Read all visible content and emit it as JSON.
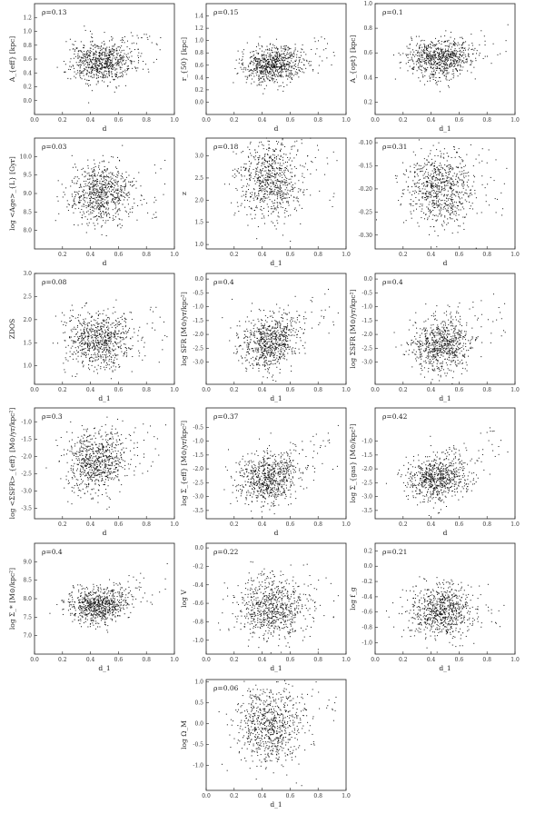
{
  "chart_data": [
    {
      "id": "p1",
      "type": "scatter",
      "rho": "ρ=0.13",
      "xlabel": "d",
      "ylabel": "A_{eff} [kpc]",
      "xlim": [
        0,
        1
      ],
      "ylim": [
        -0.2,
        1.4
      ],
      "xticks": [
        "0.0",
        "0.2",
        "0.4",
        "0.6",
        "0.8",
        "1.0"
      ],
      "yticks": [
        "0.0",
        "0.2",
        "0.4",
        "0.6",
        "0.8",
        "1.0",
        "1.2"
      ],
      "n": 750,
      "cx": 0.48,
      "sx": 0.11,
      "cy": 0.55,
      "sy": 0.14,
      "tail": 0.25,
      "seed": 11
    },
    {
      "id": "p2",
      "type": "scatter",
      "rho": "ρ=0.15",
      "xlabel": "d",
      "ylabel": "r_{50} [kpc]",
      "xlim": [
        0,
        1
      ],
      "ylim": [
        -0.2,
        1.6
      ],
      "xticks": [
        "0.0",
        "0.2",
        "0.4",
        "0.6",
        "0.8",
        "1.0"
      ],
      "yticks": [
        "0.0",
        "0.2",
        "0.4",
        "0.6",
        "0.8",
        "1.0",
        "1.2",
        "1.4"
      ],
      "n": 750,
      "cx": 0.48,
      "sx": 0.11,
      "cy": 0.6,
      "sy": 0.15,
      "tail": 0.3,
      "seed": 12
    },
    {
      "id": "p3",
      "type": "scatter",
      "rho": "ρ=0.1",
      "xlabel": "d_1",
      "ylabel": "A_{opt} [kpc]",
      "xlim": [
        0,
        1
      ],
      "ylim": [
        0.1,
        1.0
      ],
      "xticks": [
        "0.0",
        "0.2",
        "0.4",
        "0.6",
        "0.8",
        "1.0"
      ],
      "yticks": [
        "0.2",
        "0.4",
        "0.6",
        "0.8",
        "1.0"
      ],
      "n": 750,
      "cx": 0.47,
      "sx": 0.12,
      "cy": 0.55,
      "sy": 0.08,
      "tail": 0.2,
      "seed": 13
    },
    {
      "id": "p4",
      "type": "scatter",
      "rho": "ρ=0.03",
      "xlabel": "d",
      "ylabel": "log <Age>_{L} [Gyr]",
      "xlim": [
        0,
        1
      ],
      "ylim": [
        7.5,
        10.5
      ],
      "xticks": [
        "0.2",
        "0.4",
        "0.6",
        "0.8",
        "1.0"
      ],
      "yticks": [
        "8.0",
        "8.5",
        "9.0",
        "9.5",
        "10.0"
      ],
      "n": 750,
      "cx": 0.48,
      "sx": 0.11,
      "cy": 8.95,
      "sy": 0.4,
      "tail": 0.0,
      "seed": 14
    },
    {
      "id": "p5",
      "type": "scatter",
      "rho": "ρ=0.18",
      "xlabel": "d_1",
      "ylabel": "z",
      "xlim": [
        0,
        1
      ],
      "ylim": [
        0.9,
        3.4
      ],
      "xticks": [
        "0.2",
        "0.4",
        "0.6",
        "0.8",
        "1.0"
      ],
      "yticks": [
        "1.0",
        "1.5",
        "2.0",
        "2.5",
        "3.0"
      ],
      "n": 750,
      "cx": 0.45,
      "sx": 0.12,
      "cy": 2.45,
      "sy": 0.45,
      "tail": 0.0,
      "seed": 15
    },
    {
      "id": "p6",
      "type": "scatter",
      "rho": "ρ=0.31",
      "xlabel": "d",
      "ylabel": "",
      "xlim": [
        0,
        1
      ],
      "ylim": [
        -0.33,
        -0.09
      ],
      "xticks": [
        "0.2",
        "0.4",
        "0.6",
        "0.8",
        "1.0"
      ],
      "yticks": [
        "-0.10",
        "-0.15",
        "-0.20",
        "-0.25",
        "-0.30"
      ],
      "n": 750,
      "cx": 0.47,
      "sx": 0.12,
      "cy": -0.2,
      "sy": 0.04,
      "tail": 0.0,
      "seed": 16
    },
    {
      "id": "p7",
      "type": "scatter",
      "rho": "ρ=0.08",
      "xlabel": "d_1",
      "ylabel": "ZDOS",
      "xlim": [
        0,
        1
      ],
      "ylim": [
        0.6,
        3.0
      ],
      "xticks": [
        "0.0",
        "0.2",
        "0.4",
        "0.6",
        "0.8",
        "1.0"
      ],
      "yticks": [
        "1.0",
        "1.5",
        "2.0",
        "2.5",
        "3.0"
      ],
      "n": 750,
      "cx": 0.45,
      "sx": 0.12,
      "cy": 1.55,
      "sy": 0.3,
      "tail": 0.0,
      "seed": 17
    },
    {
      "id": "p8",
      "type": "scatter",
      "rho": "ρ=0.4",
      "xlabel": "d_1",
      "ylabel": "log SFR [M⊙/yr/kpc²]",
      "xlim": [
        0,
        1
      ],
      "ylim": [
        -3.8,
        0.2
      ],
      "xticks": [
        "0.0",
        "0.2",
        "0.4",
        "0.6",
        "0.8",
        "1.0"
      ],
      "yticks": [
        "-3.0",
        "-2.5",
        "-2.0",
        "-1.5",
        "-1.0",
        "-0.5",
        "0.0"
      ],
      "n": 750,
      "cx": 0.45,
      "sx": 0.11,
      "cy": -2.3,
      "sy": 0.5,
      "tail": 1.8,
      "seed": 18
    },
    {
      "id": "p9",
      "type": "scatter",
      "rho": "ρ=0.4",
      "xlabel": "d_1",
      "ylabel": "log ΣSFR [M⊙/yr/kpc²]",
      "xlim": [
        0,
        1
      ],
      "ylim": [
        -3.8,
        0.2
      ],
      "xticks": [
        "0.0",
        "0.2",
        "0.4",
        "0.6",
        "0.8",
        "1.0"
      ],
      "yticks": [
        "-3.0",
        "-2.5",
        "-2.0",
        "-1.5",
        "-1.0",
        "-0.5",
        "0.0"
      ],
      "n": 750,
      "cx": 0.47,
      "sx": 0.11,
      "cy": -2.4,
      "sy": 0.5,
      "tail": 1.8,
      "seed": 19
    },
    {
      "id": "p10",
      "type": "scatter",
      "rho": "ρ=0.3",
      "xlabel": "d",
      "ylabel": "log <ΣSFR>_{eff} [M⊙/yr/kpc²]",
      "xlim": [
        0,
        1
      ],
      "ylim": [
        -3.8,
        -0.6
      ],
      "xticks": [
        "0.2",
        "0.4",
        "0.6",
        "0.8",
        "1.0"
      ],
      "yticks": [
        "-3.5",
        "-3.0",
        "-2.5",
        "-2.0",
        "-1.5",
        "-1.0"
      ],
      "n": 750,
      "cx": 0.45,
      "sx": 0.11,
      "cy": -2.2,
      "sy": 0.45,
      "tail": 1.2,
      "seed": 20
    },
    {
      "id": "p11",
      "type": "scatter",
      "rho": "ρ=0.37",
      "xlabel": "d",
      "ylabel": "log Σ_{eff} [M⊙/yr/kpc²]",
      "xlim": [
        0,
        1
      ],
      "ylim": [
        -3.8,
        0.2
      ],
      "xticks": [
        "0.2",
        "0.4",
        "0.6",
        "0.8",
        "1.0"
      ],
      "yticks": [
        "-3.5",
        "-3.0",
        "-2.5",
        "-2.0",
        "-1.5",
        "-1.0",
        "-0.5"
      ],
      "n": 750,
      "cx": 0.45,
      "sx": 0.11,
      "cy": -2.4,
      "sy": 0.45,
      "tail": 1.8,
      "seed": 21
    },
    {
      "id": "p12",
      "type": "scatter",
      "rho": "ρ=0.42",
      "xlabel": "d",
      "ylabel": "log Σ_{gas} [M⊙/kpc²]",
      "xlim": [
        0,
        1
      ],
      "ylim": [
        -3.8,
        0.2
      ],
      "xticks": [
        "0.2",
        "0.4",
        "0.6",
        "0.8",
        "1.0"
      ],
      "yticks": [
        "-3.5",
        "-3.0",
        "-2.5",
        "-2.0",
        "-1.5",
        "-1.0"
      ],
      "n": 750,
      "cx": 0.45,
      "sx": 0.11,
      "cy": -2.4,
      "sy": 0.45,
      "tail": 2.2,
      "seed": 22
    },
    {
      "id": "p13",
      "type": "scatter",
      "rho": "ρ=0.4",
      "xlabel": "d_1",
      "ylabel": "log Σ_* [M⊙/kpc²]",
      "xlim": [
        0,
        1
      ],
      "ylim": [
        6.5,
        9.5
      ],
      "xticks": [
        "0.0",
        "0.2",
        "0.4",
        "0.6",
        "0.8",
        "1.0"
      ],
      "yticks": [
        "7.0",
        "7.5",
        "8.0",
        "8.5",
        "9.0"
      ],
      "n": 750,
      "cx": 0.47,
      "sx": 0.11,
      "cy": 7.8,
      "sy": 0.25,
      "tail": 1.2,
      "seed": 23
    },
    {
      "id": "p14",
      "type": "scatter",
      "rho": "ρ=0.22",
      "xlabel": "d_1",
      "ylabel": "log V",
      "xlim": [
        0,
        1
      ],
      "ylim": [
        -1.15,
        0.05
      ],
      "xticks": [
        "0.0",
        "0.2",
        "0.4",
        "0.6",
        "0.8",
        "1.0"
      ],
      "yticks": [
        "-1.0",
        "-0.8",
        "-0.6",
        "-0.4",
        "-0.2",
        "0.0"
      ],
      "n": 750,
      "cx": 0.47,
      "sx": 0.12,
      "cy": -0.65,
      "sy": 0.17,
      "tail": 0.0,
      "seed": 24
    },
    {
      "id": "p15",
      "type": "scatter",
      "rho": "ρ=0.21",
      "xlabel": "d_1",
      "ylabel": "log f_g",
      "xlim": [
        0,
        1
      ],
      "ylim": [
        -1.15,
        0.3
      ],
      "xticks": [
        "0.0",
        "0.2",
        "0.4",
        "0.6",
        "0.8",
        "1.0"
      ],
      "yticks": [
        "-1.0",
        "-0.8",
        "-0.6",
        "-0.4",
        "-0.2",
        "0.0",
        "0.2"
      ],
      "n": 750,
      "cx": 0.47,
      "sx": 0.12,
      "cy": -0.6,
      "sy": 0.17,
      "tail": 0.0,
      "seed": 25
    },
    {
      "id": "p16",
      "type": "scatter",
      "rho": "ρ=0.06",
      "xlabel": "d_1",
      "ylabel": "log Ω_M",
      "xlim": [
        0,
        1
      ],
      "ylim": [
        -1.6,
        1.05
      ],
      "xticks": [
        "0.0",
        "0.2",
        "0.4",
        "0.6",
        "0.8",
        "1.0"
      ],
      "yticks": [
        "-1.0",
        "-0.5",
        "0.0",
        "0.5",
        "1.0"
      ],
      "n": 750,
      "cx": 0.45,
      "sx": 0.12,
      "cy": -0.05,
      "sy": 0.45,
      "tail": 0.0,
      "seed": 26
    }
  ]
}
